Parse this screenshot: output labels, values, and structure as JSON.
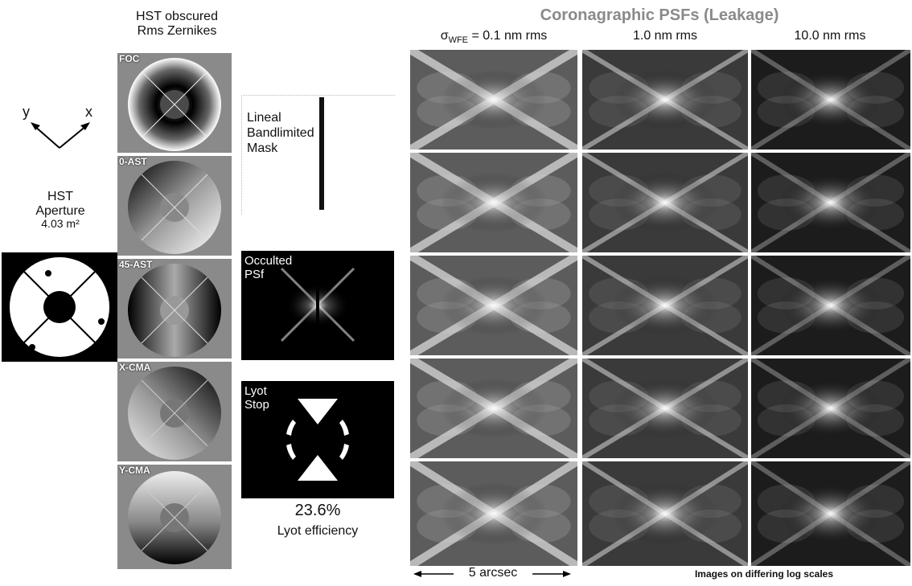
{
  "left": {
    "axis_y": "y",
    "axis_x": "x",
    "aperture_title_1": "HST",
    "aperture_title_2": "Aperture",
    "aperture_area": "4.03 m²"
  },
  "zernikes": {
    "title_1": "HST obscured",
    "title_2": "Rms Zernikes",
    "items": [
      "FOC",
      "0-AST",
      "45-AST",
      "X-CMA",
      "Y-CMA"
    ]
  },
  "mask": {
    "label_1": "Lineal",
    "label_2": "Bandlimited",
    "label_3": "Mask"
  },
  "occulted": {
    "label_1": "Occulted",
    "label_2": "PSf"
  },
  "lyot": {
    "label_1": "Lyot",
    "label_2": "Stop",
    "efficiency_value": "23.6%",
    "efficiency_label": "Lyot efficiency"
  },
  "grid": {
    "title": "Coronagraphic PSFs (Leakage)",
    "col1_sigma": "σ",
    "col1_sub": "WFE",
    "col1_rest": " = 0.1 nm rms",
    "col2": "1.0 nm rms",
    "col3": "10.0 nm rms",
    "scale_label": "5 arcsec",
    "footer": "Images on differing log scales"
  },
  "colors": {
    "background": "#ffffff",
    "grid_bg": "#3a3a3a",
    "title_gray": "#888888"
  }
}
